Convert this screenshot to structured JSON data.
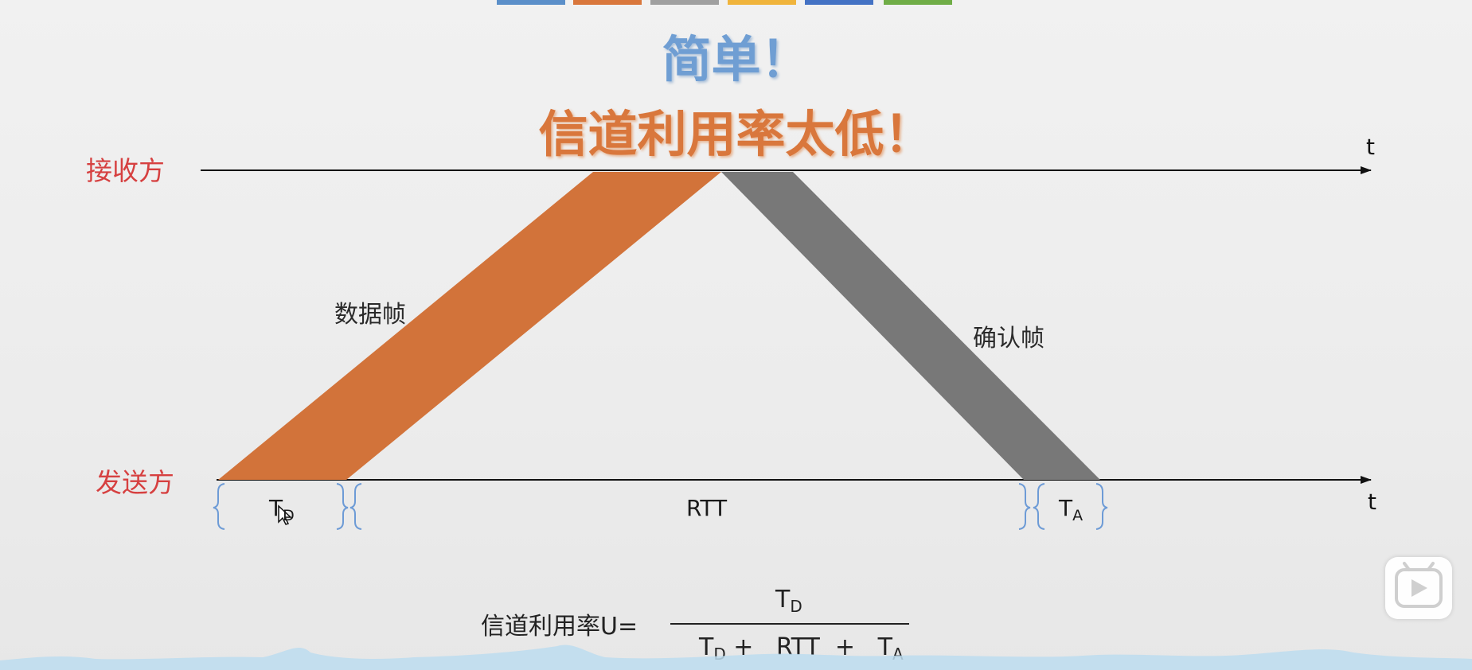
{
  "top_bar_colors": [
    "#5b8fc9",
    "#d9773c",
    "#a0a0a0",
    "#f0b43c",
    "#4472c4",
    "#70ad47"
  ],
  "headline": {
    "simple": "简单！",
    "low_utilization": "信道利用率太低！"
  },
  "receiver_label": "接收方",
  "sender_label": "发送方",
  "time_axis_label": "t",
  "data_frame_label": "数据帧",
  "ack_frame_label": "确认帧",
  "intervals": {
    "td": {
      "main": "T",
      "sub": "D"
    },
    "rtt": "RTT",
    "ta": {
      "main": "T",
      "sub": "A"
    }
  },
  "formula": {
    "prefix": "信道利用率U=",
    "numerator": {
      "main": "T",
      "sub": "D"
    },
    "denominator": {
      "td_main": "T",
      "td_sub": "D",
      "plus1": "+",
      "rtt": "RTT",
      "plus2": "+",
      "ta_main": "T",
      "ta_sub": "A"
    }
  },
  "colors": {
    "data_frame": "#d2733a",
    "ack_frame": "#787878",
    "brace": "#6d9bd6",
    "party_label": "#d64040"
  },
  "icons": {
    "play": "play-icon",
    "cursor": "cursor-icon"
  }
}
